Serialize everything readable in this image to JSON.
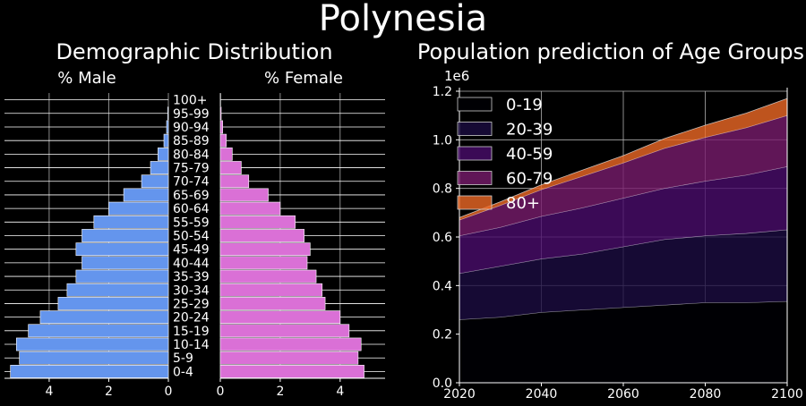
{
  "title": "Polynesia",
  "chart_data": [
    {
      "type": "bar",
      "orientation": "horizontal",
      "title": "Demographic Distribution",
      "age_groups": [
        "0-4",
        "5-9",
        "10-14",
        "15-19",
        "20-24",
        "25-29",
        "30-34",
        "35-39",
        "40-44",
        "45-49",
        "50-54",
        "55-59",
        "60-64",
        "65-69",
        "70-74",
        "75-79",
        "80-84",
        "85-89",
        "90-94",
        "95-99",
        "100+"
      ],
      "male": {
        "label": "% Male",
        "values": [
          5.3,
          5.0,
          5.1,
          4.7,
          4.3,
          3.7,
          3.4,
          3.1,
          2.9,
          3.1,
          2.9,
          2.5,
          2.0,
          1.5,
          0.9,
          0.6,
          0.35,
          0.15,
          0.06,
          0.02,
          0.0
        ],
        "xticks": [
          "4",
          "2",
          "0"
        ],
        "xlim": [
          5.5,
          0
        ],
        "color": "#6495ED"
      },
      "female": {
        "label": "% Female",
        "values": [
          4.8,
          4.6,
          4.7,
          4.3,
          4.0,
          3.5,
          3.4,
          3.2,
          2.9,
          3.0,
          2.8,
          2.5,
          2.0,
          1.6,
          0.95,
          0.7,
          0.4,
          0.2,
          0.08,
          0.03,
          0.01
        ],
        "xticks": [
          "0",
          "2",
          "4"
        ],
        "xlim": [
          0,
          5.5
        ],
        "color": "#DA70D6"
      }
    },
    {
      "type": "area",
      "stacked": true,
      "title": "Population prediction of Age Groups",
      "y_offset_label": "1e6",
      "x": [
        2020,
        2030,
        2040,
        2050,
        2060,
        2070,
        2080,
        2090,
        2100
      ],
      "xlim": [
        2020,
        2100
      ],
      "ylim": [
        0,
        1.2
      ],
      "xticks": [
        "2020",
        "2040",
        "2060",
        "2080",
        "2100"
      ],
      "yticks": [
        "0.0",
        "0.2",
        "0.4",
        "0.6",
        "0.8",
        "1.0",
        "1.2"
      ],
      "legend_position": "upper-left",
      "series": [
        {
          "name": "0-19",
          "color": "#000004",
          "values": [
            0.26,
            0.27,
            0.29,
            0.3,
            0.31,
            0.32,
            0.33,
            0.33,
            0.335
          ]
        },
        {
          "name": "20-39",
          "color": "#1b0c41",
          "values": [
            0.19,
            0.21,
            0.22,
            0.23,
            0.25,
            0.27,
            0.275,
            0.285,
            0.295
          ]
        },
        {
          "name": "40-59",
          "color": "#4a0c6b",
          "values": [
            0.155,
            0.16,
            0.175,
            0.19,
            0.2,
            0.21,
            0.225,
            0.24,
            0.26
          ]
        },
        {
          "name": "60-79",
          "color": "#781c6d",
          "values": [
            0.065,
            0.09,
            0.11,
            0.13,
            0.145,
            0.165,
            0.18,
            0.195,
            0.21
          ]
        },
        {
          "name": "80+",
          "color": "#ed6925",
          "values": [
            0.01,
            0.015,
            0.02,
            0.025,
            0.03,
            0.04,
            0.05,
            0.06,
            0.07
          ]
        }
      ]
    }
  ]
}
